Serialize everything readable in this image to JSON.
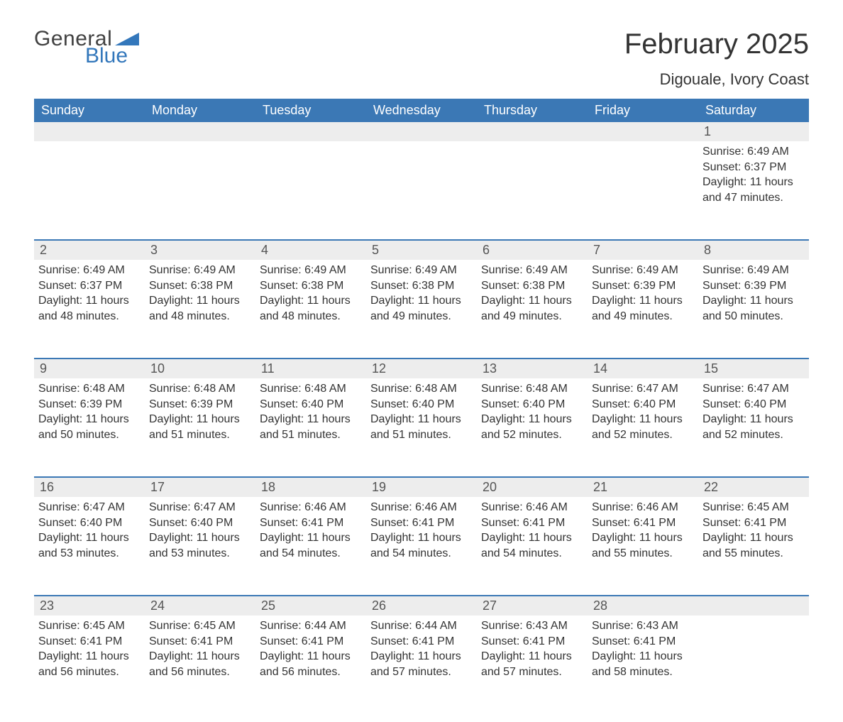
{
  "logo": {
    "word1": "General",
    "word2": "Blue",
    "accent_color": "#3377bb",
    "text_color": "#414141"
  },
  "title": {
    "month": "February 2025",
    "location": "Digouale, Ivory Coast"
  },
  "colors": {
    "header_bg": "#3b78b5",
    "header_text": "#ffffff",
    "daynum_bg": "#ededed",
    "week_divider": "#3b78b5",
    "body_text": "#333333",
    "background": "#ffffff"
  },
  "typography": {
    "month_fontsize": 40,
    "location_fontsize": 22,
    "header_fontsize": 18,
    "daynum_fontsize": 18,
    "body_fontsize": 16
  },
  "layout": {
    "columns": 7,
    "start_day_index": 6
  },
  "weekdays": [
    "Sunday",
    "Monday",
    "Tuesday",
    "Wednesday",
    "Thursday",
    "Friday",
    "Saturday"
  ],
  "labels": {
    "sunrise": "Sunrise:",
    "sunset": "Sunset:",
    "daylight": "Daylight:"
  },
  "days": [
    {
      "n": 1,
      "sunrise": "6:49 AM",
      "sunset": "6:37 PM",
      "daylight": "11 hours and 47 minutes."
    },
    {
      "n": 2,
      "sunrise": "6:49 AM",
      "sunset": "6:37 PM",
      "daylight": "11 hours and 48 minutes."
    },
    {
      "n": 3,
      "sunrise": "6:49 AM",
      "sunset": "6:38 PM",
      "daylight": "11 hours and 48 minutes."
    },
    {
      "n": 4,
      "sunrise": "6:49 AM",
      "sunset": "6:38 PM",
      "daylight": "11 hours and 48 minutes."
    },
    {
      "n": 5,
      "sunrise": "6:49 AM",
      "sunset": "6:38 PM",
      "daylight": "11 hours and 49 minutes."
    },
    {
      "n": 6,
      "sunrise": "6:49 AM",
      "sunset": "6:38 PM",
      "daylight": "11 hours and 49 minutes."
    },
    {
      "n": 7,
      "sunrise": "6:49 AM",
      "sunset": "6:39 PM",
      "daylight": "11 hours and 49 minutes."
    },
    {
      "n": 8,
      "sunrise": "6:49 AM",
      "sunset": "6:39 PM",
      "daylight": "11 hours and 50 minutes."
    },
    {
      "n": 9,
      "sunrise": "6:48 AM",
      "sunset": "6:39 PM",
      "daylight": "11 hours and 50 minutes."
    },
    {
      "n": 10,
      "sunrise": "6:48 AM",
      "sunset": "6:39 PM",
      "daylight": "11 hours and 51 minutes."
    },
    {
      "n": 11,
      "sunrise": "6:48 AM",
      "sunset": "6:40 PM",
      "daylight": "11 hours and 51 minutes."
    },
    {
      "n": 12,
      "sunrise": "6:48 AM",
      "sunset": "6:40 PM",
      "daylight": "11 hours and 51 minutes."
    },
    {
      "n": 13,
      "sunrise": "6:48 AM",
      "sunset": "6:40 PM",
      "daylight": "11 hours and 52 minutes."
    },
    {
      "n": 14,
      "sunrise": "6:47 AM",
      "sunset": "6:40 PM",
      "daylight": "11 hours and 52 minutes."
    },
    {
      "n": 15,
      "sunrise": "6:47 AM",
      "sunset": "6:40 PM",
      "daylight": "11 hours and 52 minutes."
    },
    {
      "n": 16,
      "sunrise": "6:47 AM",
      "sunset": "6:40 PM",
      "daylight": "11 hours and 53 minutes."
    },
    {
      "n": 17,
      "sunrise": "6:47 AM",
      "sunset": "6:40 PM",
      "daylight": "11 hours and 53 minutes."
    },
    {
      "n": 18,
      "sunrise": "6:46 AM",
      "sunset": "6:41 PM",
      "daylight": "11 hours and 54 minutes."
    },
    {
      "n": 19,
      "sunrise": "6:46 AM",
      "sunset": "6:41 PM",
      "daylight": "11 hours and 54 minutes."
    },
    {
      "n": 20,
      "sunrise": "6:46 AM",
      "sunset": "6:41 PM",
      "daylight": "11 hours and 54 minutes."
    },
    {
      "n": 21,
      "sunrise": "6:46 AM",
      "sunset": "6:41 PM",
      "daylight": "11 hours and 55 minutes."
    },
    {
      "n": 22,
      "sunrise": "6:45 AM",
      "sunset": "6:41 PM",
      "daylight": "11 hours and 55 minutes."
    },
    {
      "n": 23,
      "sunrise": "6:45 AM",
      "sunset": "6:41 PM",
      "daylight": "11 hours and 56 minutes."
    },
    {
      "n": 24,
      "sunrise": "6:45 AM",
      "sunset": "6:41 PM",
      "daylight": "11 hours and 56 minutes."
    },
    {
      "n": 25,
      "sunrise": "6:44 AM",
      "sunset": "6:41 PM",
      "daylight": "11 hours and 56 minutes."
    },
    {
      "n": 26,
      "sunrise": "6:44 AM",
      "sunset": "6:41 PM",
      "daylight": "11 hours and 57 minutes."
    },
    {
      "n": 27,
      "sunrise": "6:43 AM",
      "sunset": "6:41 PM",
      "daylight": "11 hours and 57 minutes."
    },
    {
      "n": 28,
      "sunrise": "6:43 AM",
      "sunset": "6:41 PM",
      "daylight": "11 hours and 58 minutes."
    }
  ]
}
